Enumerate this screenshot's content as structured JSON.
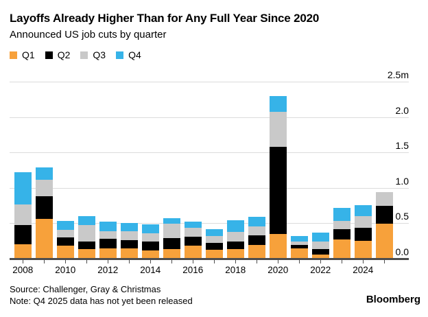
{
  "header": {
    "title": "Layoffs Already Higher Than for Any Full Year Since 2020",
    "subtitle": "Announced US job cuts by quarter"
  },
  "footer": {
    "source": "Source: Challenger, Gray & Christmas",
    "note": "Note: Q4 2025 data has not yet been released",
    "brand": "Bloomberg"
  },
  "colors": {
    "q1": "#F7A13B",
    "q2": "#000000",
    "q3": "#C9C9C9",
    "q4": "#36B3E8",
    "gridline": "#DBDBDB",
    "axis": "#4D4D4D"
  },
  "chart_data": {
    "type": "bar",
    "stacked": true,
    "title": "Layoffs Already Higher Than for Any Full Year Since 2020",
    "subtitle": "Announced US job cuts by quarter",
    "unit": "millions of announced US job cuts",
    "categories": [
      "2008",
      "2009",
      "2010",
      "2011",
      "2012",
      "2013",
      "2014",
      "2015",
      "2016",
      "2017",
      "2018",
      "2019",
      "2020",
      "2021",
      "2022",
      "2023",
      "2024",
      "2025"
    ],
    "series": [
      {
        "name": "Q1",
        "color": "#F7A13B",
        "values": [
          0.201,
          0.563,
          0.181,
          0.131,
          0.143,
          0.145,
          0.121,
          0.14,
          0.181,
          0.126,
          0.14,
          0.19,
          0.347,
          0.145,
          0.056,
          0.27,
          0.257,
          0.497
        ]
      },
      {
        "name": "Q2",
        "color": "#000000",
        "values": [
          0.275,
          0.318,
          0.116,
          0.115,
          0.14,
          0.114,
          0.125,
          0.147,
          0.133,
          0.101,
          0.099,
          0.141,
          1.238,
          0.048,
          0.078,
          0.147,
          0.175,
          0.247
        ]
      },
      {
        "name": "Q3",
        "color": "#C9C9C9",
        "values": [
          0.287,
          0.24,
          0.114,
          0.233,
          0.103,
          0.128,
          0.117,
          0.206,
          0.122,
          0.094,
          0.141,
          0.126,
          0.497,
          0.053,
          0.108,
          0.12,
          0.174,
          0.202
        ]
      },
      {
        "name": "Q4",
        "color": "#36B3E8",
        "values": [
          0.461,
          0.167,
          0.119,
          0.127,
          0.137,
          0.122,
          0.12,
          0.081,
          0.091,
          0.097,
          0.159,
          0.135,
          0.223,
          0.077,
          0.123,
          0.185,
          0.155,
          0
        ]
      }
    ],
    "ylim": [
      0,
      2.5
    ],
    "y_ticks": [
      {
        "value": 0.0,
        "label": "0.0"
      },
      {
        "value": 0.5,
        "label": "0.5"
      },
      {
        "value": 1.0,
        "label": "1.0"
      },
      {
        "value": 1.5,
        "label": "1.5"
      },
      {
        "value": 2.0,
        "label": "2.0"
      },
      {
        "value": 2.5,
        "label": "2.5m"
      }
    ],
    "x_tick_label_years": [
      "2008",
      "2010",
      "2012",
      "2014",
      "2016",
      "2018",
      "2020",
      "2022",
      "2024"
    ],
    "grid": "horizontal",
    "legend_position": "top-left",
    "y_axis_side": "right"
  }
}
